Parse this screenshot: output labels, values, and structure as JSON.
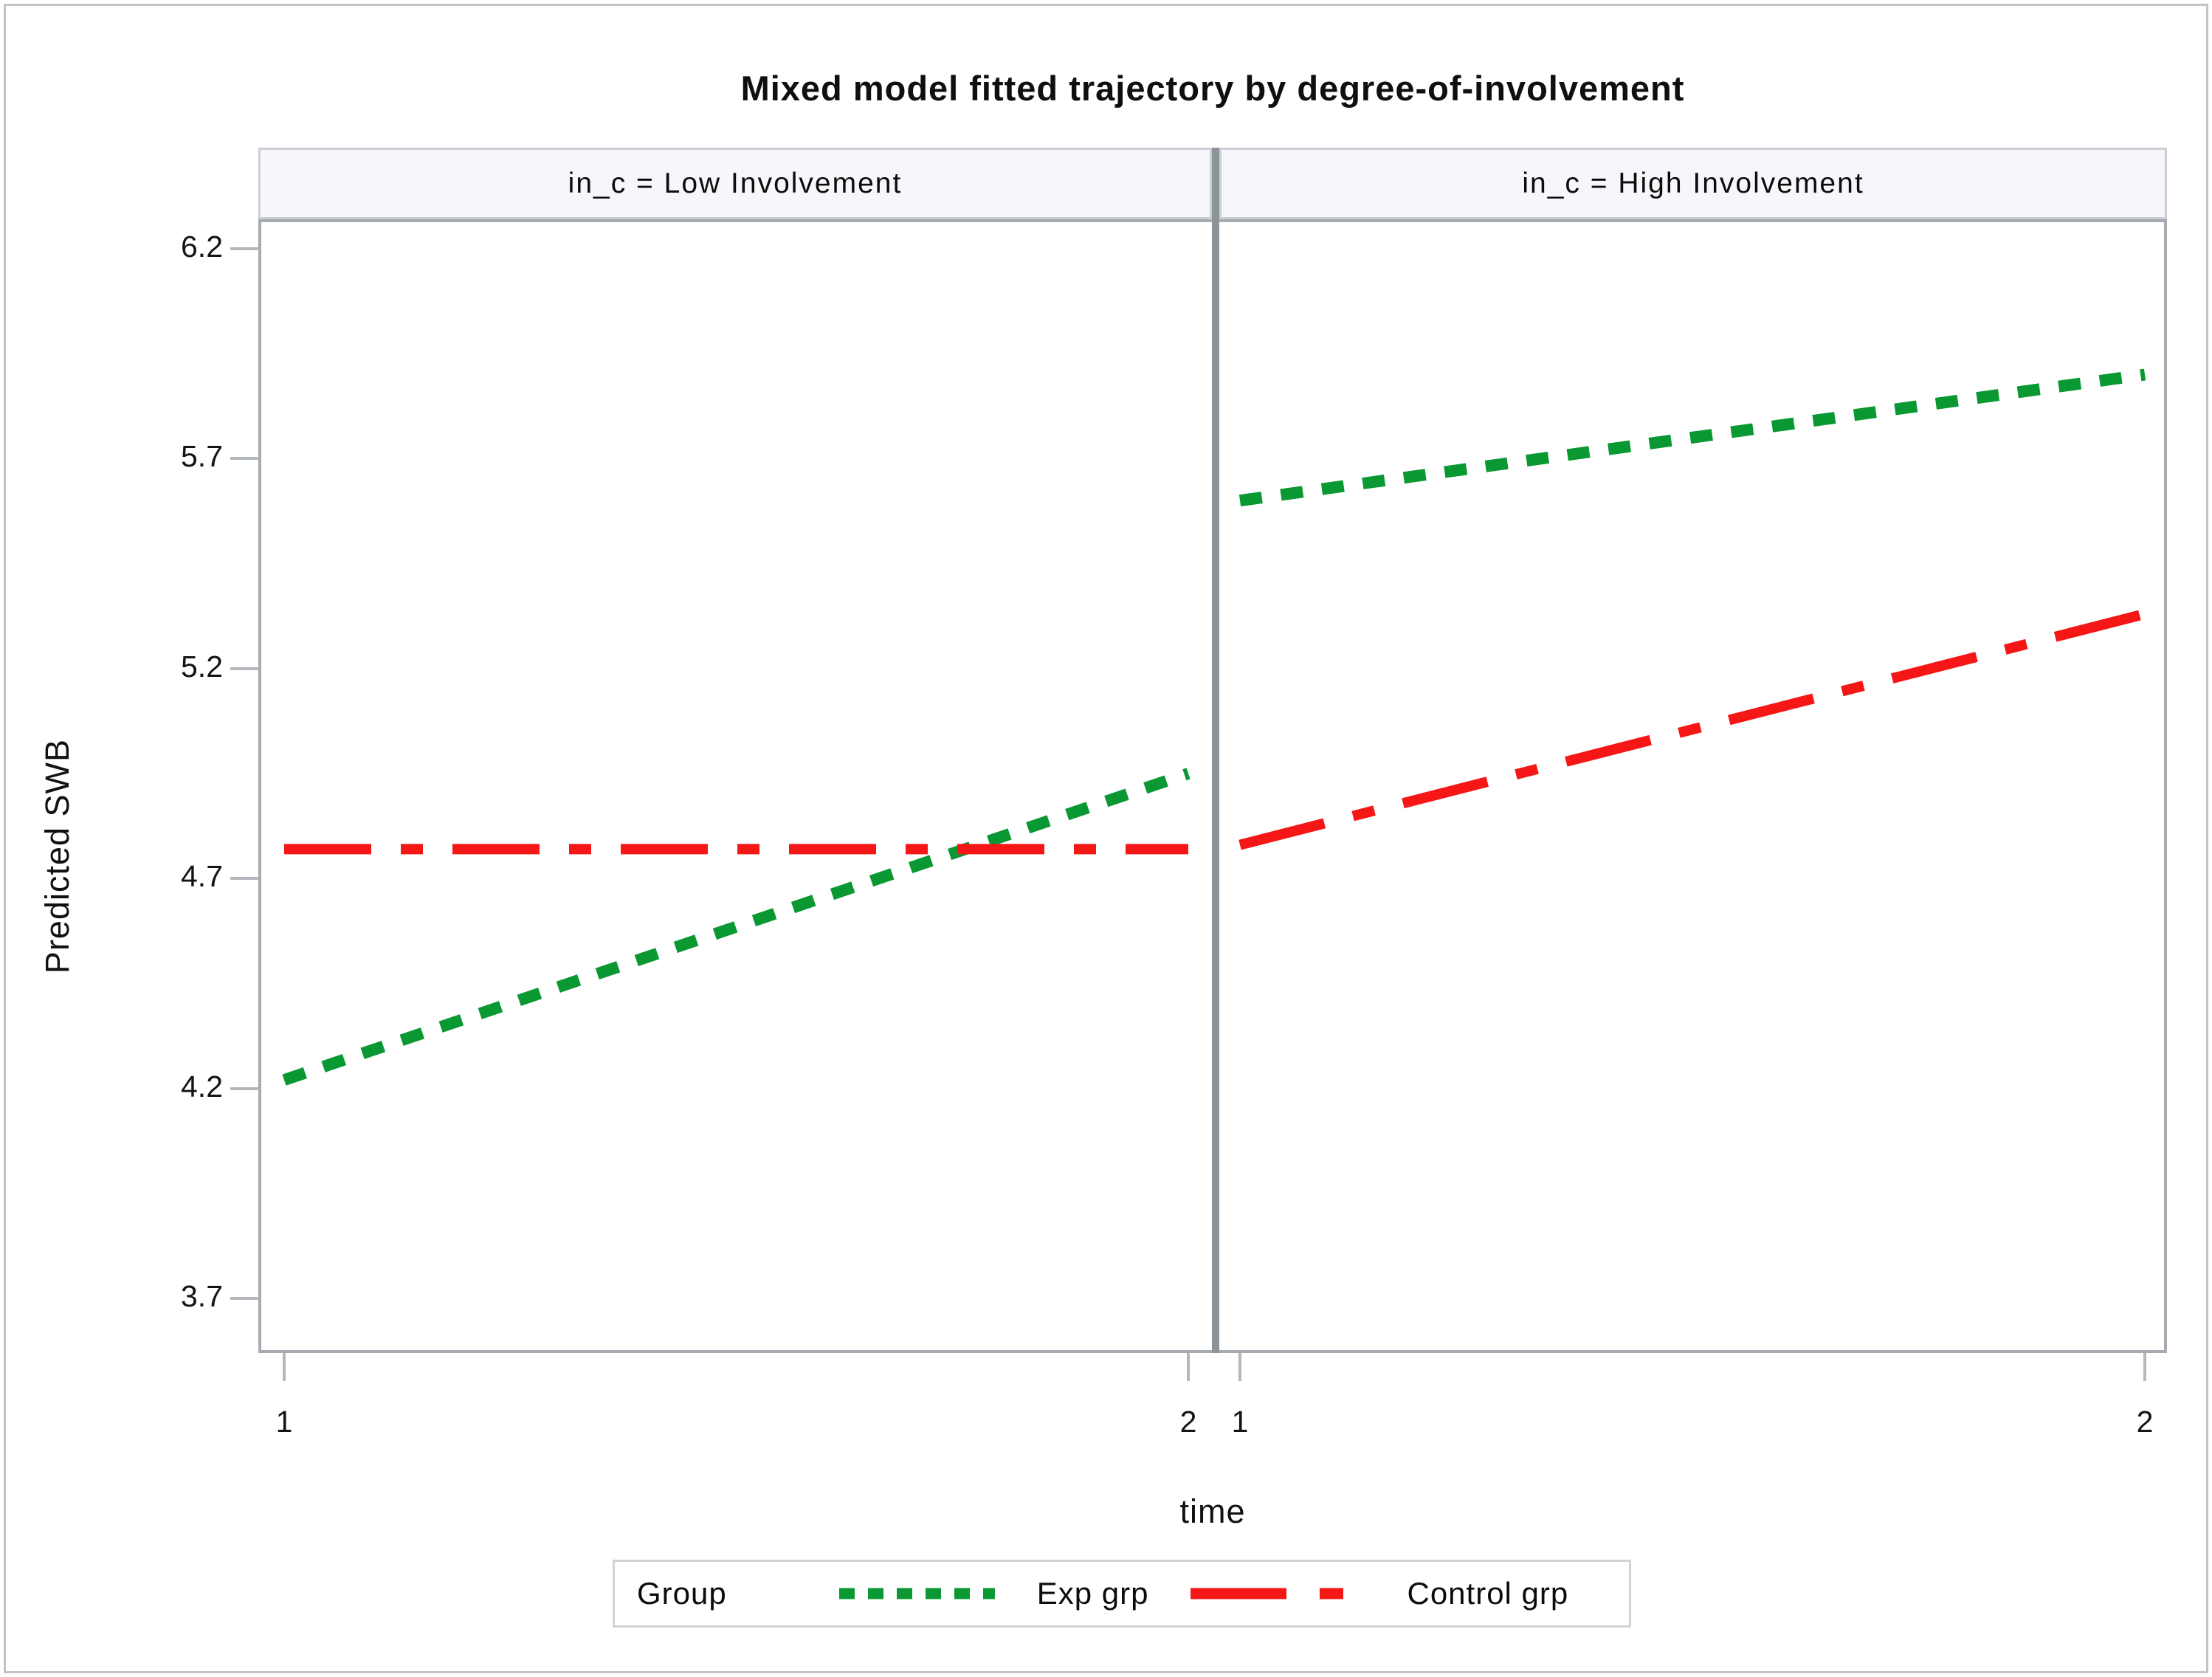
{
  "figure": {
    "title": "Mixed model fitted trajectory by degree-of-involvement",
    "xlabel": "time",
    "ylabel": "Predicted SWB",
    "legend": {
      "title": "Group",
      "entries": [
        {
          "label": "Exp grp",
          "color": "#0a9833",
          "pattern": "dotted"
        },
        {
          "label": "Control grp",
          "color": "#f51616",
          "pattern": "dash-dot"
        }
      ]
    }
  },
  "panels": [
    {
      "header": "in_c = Low Involvement"
    },
    {
      "header": "in_c = High Involvement"
    }
  ],
  "chart_data": {
    "type": "line",
    "x": [
      1,
      2
    ],
    "xlabel": "time",
    "ylabel": "Predicted SWB",
    "title": "Mixed model fitted trajectory by degree-of-involvement",
    "y_ticks": [
      6.2,
      5.7,
      5.2,
      4.7,
      4.2,
      3.7
    ],
    "x_ticks": [
      1,
      2
    ],
    "ylim": [
      3.57,
      6.27
    ],
    "grid": false,
    "legend_position": "bottom",
    "panels": [
      {
        "header": "in_c = Low Involvement",
        "series": [
          {
            "name": "Exp grp",
            "pattern": "dotted",
            "color": "#0a9833",
            "values": [
              4.22,
              4.95
            ]
          },
          {
            "name": "Control grp",
            "pattern": "dash-dot",
            "color": "#f51616",
            "values": [
              4.77,
              4.77
            ]
          }
        ]
      },
      {
        "header": "in_c = High Involvement",
        "series": [
          {
            "name": "Exp grp",
            "pattern": "dotted",
            "color": "#0a9833",
            "values": [
              5.6,
              5.9
            ]
          },
          {
            "name": "Control grp",
            "pattern": "dash-dot",
            "color": "#f51616",
            "values": [
              4.78,
              5.33
            ]
          }
        ]
      }
    ]
  }
}
